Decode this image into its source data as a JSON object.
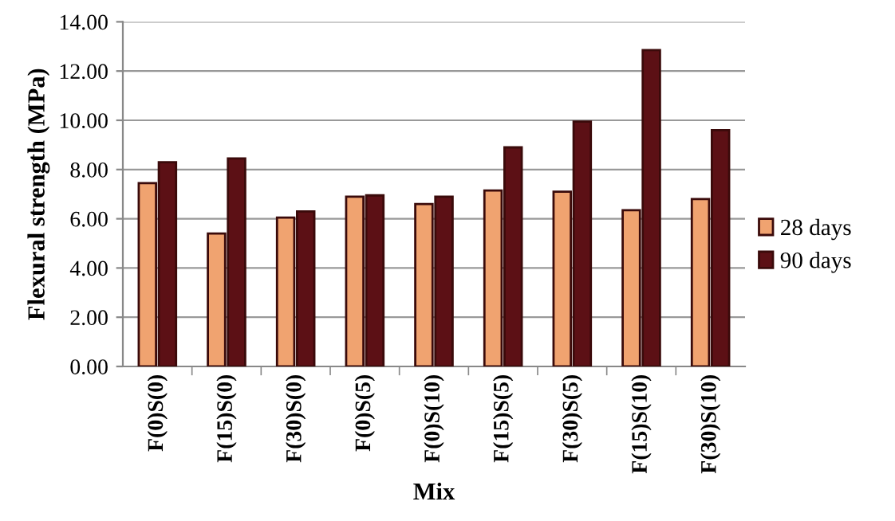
{
  "chart_data": {
    "type": "bar",
    "xlabel": "Mix",
    "ylabel": "Flexural strength (MPa)",
    "categories": [
      "F(0)S(0)",
      "F(15)S(0)",
      "F(30)S(0)",
      "F(0)S(5)",
      "F(0)S(10)",
      "F(15)S(5)",
      "F(30)S(5)",
      "F(15)S(10)",
      "F(30)S(10)"
    ],
    "series": [
      {
        "name": "28 days",
        "color": "#f0a370",
        "values": [
          7.45,
          5.4,
          6.05,
          6.9,
          6.6,
          7.15,
          7.1,
          6.35,
          6.8
        ]
      },
      {
        "name": "90 days",
        "color": "#5c1015",
        "values": [
          8.3,
          8.45,
          6.3,
          6.95,
          6.9,
          8.9,
          9.95,
          12.85,
          9.6
        ]
      }
    ],
    "ylim": [
      0,
      14
    ],
    "yticks": [
      {
        "value": 0,
        "label": "0.00"
      },
      {
        "value": 2,
        "label": "2.00"
      },
      {
        "value": 4,
        "label": "4.00"
      },
      {
        "value": 6,
        "label": "6.00"
      },
      {
        "value": 8,
        "label": "8.00"
      },
      {
        "value": 10,
        "label": "10.00"
      },
      {
        "value": 12,
        "label": "12.00"
      },
      {
        "value": 14,
        "label": "14.00"
      }
    ],
    "grid": "y",
    "legend": "right"
  }
}
